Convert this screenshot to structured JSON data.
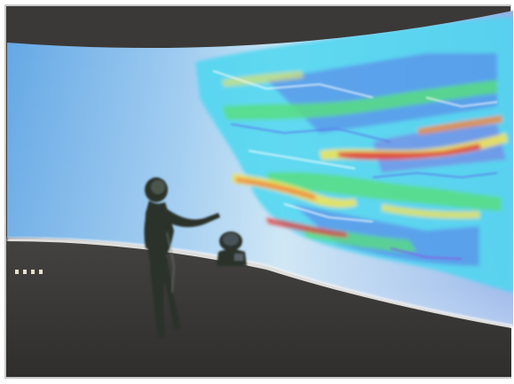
{
  "scene": {
    "subject": "visualization-theater",
    "colors": {
      "frame_border": "#c8c8c8",
      "ceiling": "#3b3937",
      "ceiling_edge": "#5a5652",
      "screen_left": "#5fa5e4",
      "screen_mid": "#c9e4f4",
      "screen_right": "#8fb0e8",
      "floor": "#3a3938",
      "floor_edge": "#f0f0f0",
      "silhouette": "#2c302c",
      "plume_cyan": "#4cd6f0",
      "plume_green": "#59e07a",
      "plume_yellow": "#f0e45a",
      "plume_orange": "#f08a40",
      "plume_red": "#e0403e",
      "plume_blue": "#5a78e8",
      "plume_purple": "#8a5ae0"
    },
    "icons": [
      "person-silhouette",
      "seated-person-silhouette",
      "floor-lights"
    ]
  }
}
